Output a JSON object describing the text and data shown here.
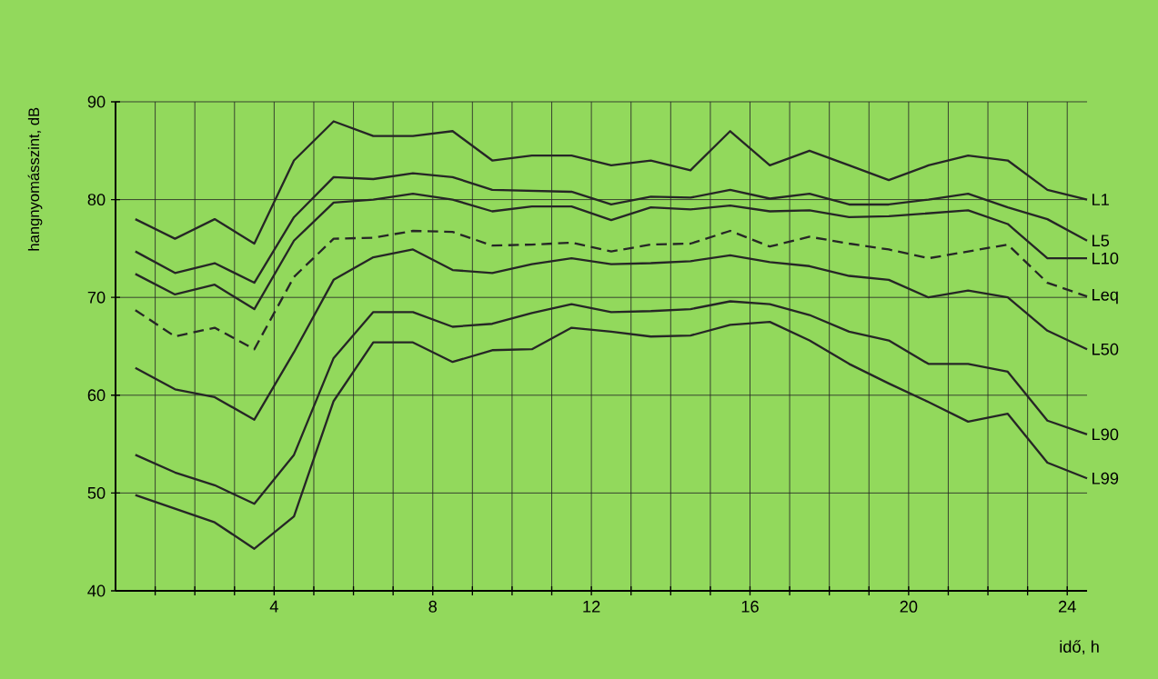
{
  "chart_data": {
    "type": "line",
    "xlabel": "idő, h",
    "ylabel": "hangnyomásszint, dB",
    "x": [
      0.5,
      1.5,
      2.5,
      3.5,
      4.5,
      5.5,
      6.5,
      7.5,
      8.5,
      9.5,
      10.5,
      11.5,
      12.5,
      13.5,
      14.5,
      15.5,
      16.5,
      17.5,
      18.5,
      19.5,
      20.5,
      21.5,
      22.5,
      23.5,
      24.5
    ],
    "xlim": [
      0,
      24.5
    ],
    "ylim": [
      40,
      90
    ],
    "xticks": [
      {
        "value": 1,
        "label": null
      },
      {
        "value": 2,
        "label": null
      },
      {
        "value": 3,
        "label": null
      },
      4,
      {
        "value": 5,
        "label": null
      },
      {
        "value": 6,
        "label": null
      },
      {
        "value": 7,
        "label": null
      },
      8,
      {
        "value": 9,
        "label": null
      },
      {
        "value": 10,
        "label": null
      },
      {
        "value": 11,
        "label": null
      },
      12,
      {
        "value": 13,
        "label": null
      },
      {
        "value": 14,
        "label": null
      },
      {
        "value": 15,
        "label": null
      },
      16,
      {
        "value": 17,
        "label": null
      },
      {
        "value": 18,
        "label": null
      },
      {
        "value": 19,
        "label": null
      },
      20,
      {
        "value": 21,
        "label": null
      },
      {
        "value": 22,
        "label": null
      },
      {
        "value": 23,
        "label": null
      },
      24
    ],
    "yticks": [
      40,
      50,
      60,
      70,
      80,
      90
    ],
    "grid": true,
    "line_style": "solid",
    "series": [
      {
        "name": "L1",
        "color": "#262626",
        "values": [
          78,
          76,
          78,
          75.5,
          84,
          88,
          86.5,
          86.5,
          87,
          84,
          84.5,
          84.5,
          83.5,
          84,
          83,
          87,
          83.5,
          85,
          83.5,
          82,
          83.5,
          84.5,
          84,
          81,
          80
        ]
      },
      {
        "name": "L5",
        "color": "#262626",
        "values": [
          74.7,
          72.5,
          73.5,
          71.5,
          78.2,
          82.3,
          82.1,
          82.7,
          82.3,
          81,
          80.9,
          80.8,
          79.5,
          80.3,
          80.2,
          81,
          80.1,
          80.6,
          79.5,
          79.5,
          80,
          80.6,
          79.2,
          78,
          75.8
        ]
      },
      {
        "name": "L10",
        "color": "#262626",
        "values": [
          72.4,
          70.3,
          71.3,
          68.8,
          75.8,
          79.7,
          80,
          80.6,
          80,
          78.8,
          79.3,
          79.3,
          77.9,
          79.2,
          79,
          79.4,
          78.8,
          78.9,
          78.2,
          78.3,
          78.6,
          78.9,
          77.5,
          74,
          74
        ]
      },
      {
        "name": "Leq",
        "color": "#262626",
        "line_style": "dashed",
        "values": [
          68.7,
          66,
          66.9,
          64.7,
          72.1,
          76,
          76.1,
          76.8,
          76.7,
          75.3,
          75.4,
          75.6,
          74.7,
          75.4,
          75.5,
          76.8,
          75.2,
          76.2,
          75.5,
          74.9,
          74,
          74.7,
          75.4,
          71.5,
          70.1
        ]
      },
      {
        "name": "L50",
        "color": "#262626",
        "values": [
          62.8,
          60.6,
          59.8,
          57.5,
          64.4,
          71.8,
          74.1,
          74.9,
          72.8,
          72.5,
          73.4,
          74,
          73.4,
          73.5,
          73.7,
          74.3,
          73.6,
          73.2,
          72.2,
          71.8,
          70,
          70.7,
          70,
          66.6,
          64.7
        ]
      },
      {
        "name": "L90",
        "color": "#262626",
        "values": [
          53.9,
          52.1,
          50.8,
          48.9,
          53.9,
          63.8,
          68.5,
          68.5,
          67,
          67.3,
          68.4,
          69.3,
          68.5,
          68.6,
          68.8,
          69.6,
          69.3,
          68.2,
          66.5,
          65.6,
          63.2,
          63.2,
          62.4,
          57.4,
          56
        ]
      },
      {
        "name": "L99",
        "color": "#262626",
        "values": [
          49.8,
          48.4,
          47,
          44.3,
          47.6,
          59.4,
          65.4,
          65.4,
          63.4,
          64.6,
          64.7,
          66.9,
          66.5,
          66,
          66.1,
          67.2,
          67.5,
          65.6,
          63.2,
          61.2,
          59.3,
          57.3,
          58.1,
          53.1,
          51.5
        ]
      }
    ]
  }
}
